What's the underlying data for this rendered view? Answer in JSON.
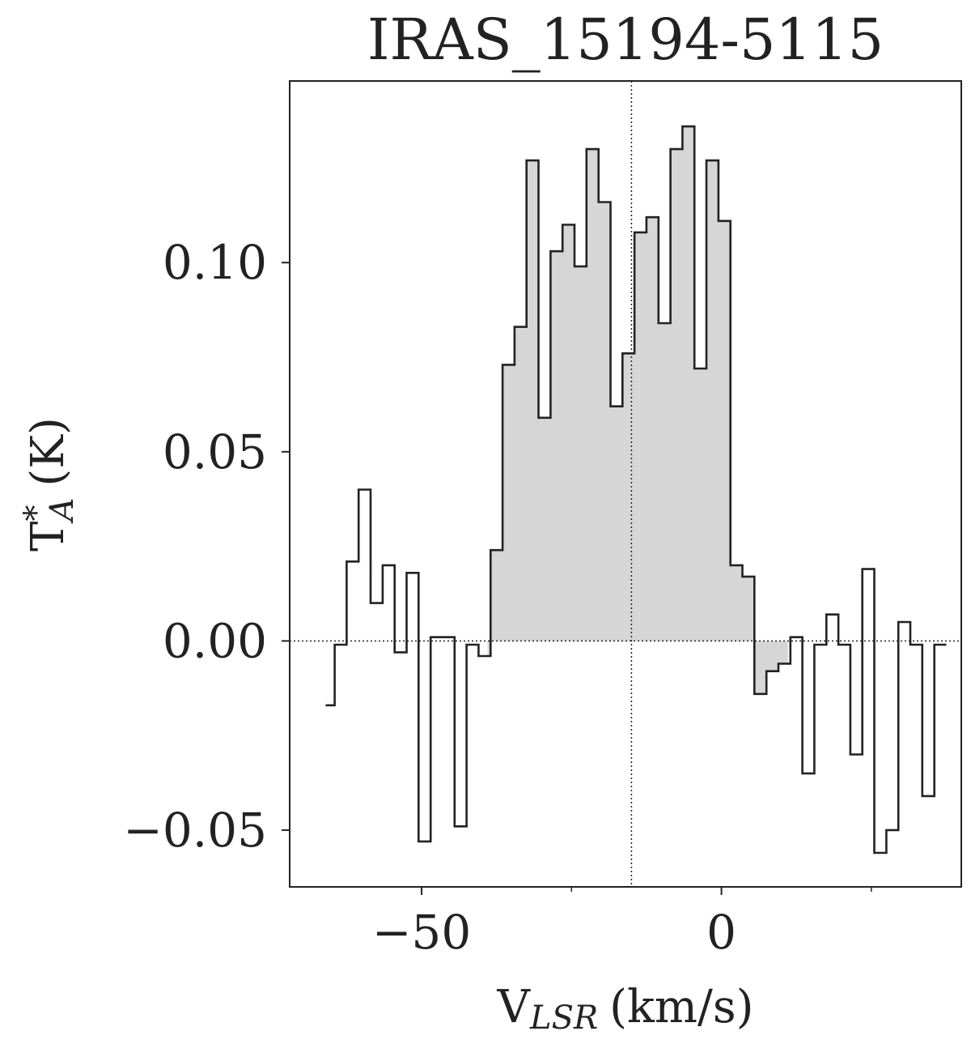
{
  "chart_data": {
    "type": "line",
    "title": "IRAS_15194-5115",
    "xlabel": {
      "main": "V",
      "sub": "LSR",
      "unit": "(km/s)"
    },
    "ylabel": {
      "main": "T",
      "sup": "*",
      "sub": "A",
      "unit": "(K)"
    },
    "xlim": [
      -72,
      40
    ],
    "ylim": [
      -0.065,
      0.148
    ],
    "x_ticks": [
      -50,
      0
    ],
    "x_tick_labels": [
      "−50",
      "0"
    ],
    "x_minor_ticks": [
      -25,
      25
    ],
    "y_ticks": [
      -0.05,
      0.0,
      0.05,
      0.1
    ],
    "y_tick_labels": [
      "−0.05",
      "0.00",
      "0.05",
      "0.10"
    ],
    "vline_x": -15,
    "hline_y": 0,
    "shaded_range": [
      -39,
      11
    ],
    "series": [
      {
        "step_edges": [
          -66,
          -64.5,
          -62.5,
          -60.5,
          -58.5,
          -56.5,
          -54.5,
          -52.5,
          -50.5,
          -48.5,
          -46.5,
          -44.5,
          -42.5,
          -40.5,
          -38.5,
          -36.5,
          -34.5,
          -32.5,
          -30.5,
          -28.5,
          -26.5,
          -24.5,
          -22.5,
          -20.5,
          -18.5,
          -16.5,
          -14.5,
          -12.5,
          -10.5,
          -8.5,
          -6.5,
          -4.5,
          -2.5,
          -0.5,
          1.5,
          3.5,
          5.5,
          7.5,
          9.5,
          11.5,
          13.5,
          15.5,
          17.5,
          19.5,
          21.5,
          23.5,
          25.5,
          27.5,
          29.5,
          31.5,
          33.5,
          35.5,
          37.5
        ],
        "values": [
          -0.017,
          -0.001,
          0.021,
          0.04,
          0.01,
          0.02,
          -0.003,
          0.018,
          -0.053,
          0.001,
          0.001,
          -0.049,
          -0.001,
          -0.004,
          0.024,
          0.073,
          0.083,
          0.127,
          0.059,
          0.103,
          0.11,
          0.099,
          0.13,
          0.116,
          0.062,
          0.076,
          0.108,
          0.112,
          0.084,
          0.13,
          0.136,
          0.072,
          0.127,
          0.111,
          0.02,
          0.017,
          -0.014,
          -0.008,
          -0.006,
          0.001,
          -0.035,
          -0.001,
          0.007,
          -0.001,
          -0.03,
          0.019,
          -0.056,
          -0.05,
          0.005,
          -0.001,
          -0.041,
          -0.001
        ]
      }
    ]
  }
}
